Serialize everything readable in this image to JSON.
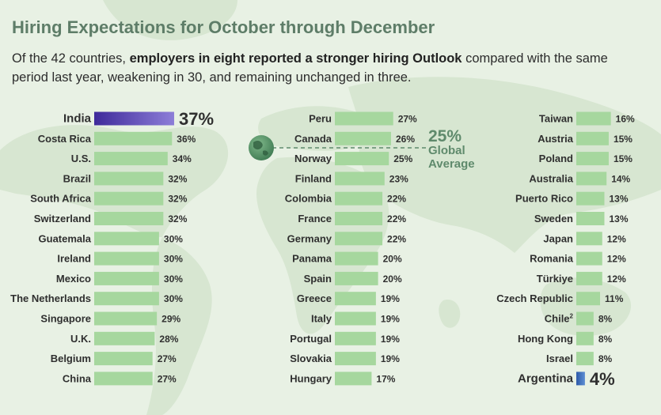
{
  "title": "Hiring Expectations for October through December",
  "subtitle": {
    "pre": "Of the 42 countries, ",
    "bold": "employers in eight reported a stronger hiring Outlook",
    "post": " compared with the same period last year, weakening in 30, and remaining unchanged in three."
  },
  "colors": {
    "bar": "#a6d79e",
    "highlight_top": "#5a46ad",
    "highlight_bottom": "#3d6bb0",
    "average": "#5f8a6c",
    "map": "#d7e6d1"
  },
  "icons": {
    "average_marker": "globe-icon"
  },
  "chart_data": {
    "type": "bar",
    "orientation": "horizontal",
    "unit": "%",
    "xlim": [
      0,
      40
    ],
    "title": "Hiring Expectations for October through December",
    "global_average": {
      "value": 25,
      "label": "25%",
      "text_line1": "Global",
      "text_line2": "Average"
    },
    "columns": [
      [
        {
          "country": "India",
          "value": 37,
          "label": "37%",
          "highlight": "top"
        },
        {
          "country": "Costa Rica",
          "value": 36,
          "label": "36%"
        },
        {
          "country": "U.S.",
          "value": 34,
          "label": "34%"
        },
        {
          "country": "Brazil",
          "value": 32,
          "label": "32%"
        },
        {
          "country": "South Africa",
          "value": 32,
          "label": "32%"
        },
        {
          "country": "Switzerland",
          "value": 32,
          "label": "32%"
        },
        {
          "country": "Guatemala",
          "value": 30,
          "label": "30%"
        },
        {
          "country": "Ireland",
          "value": 30,
          "label": "30%"
        },
        {
          "country": "Mexico",
          "value": 30,
          "label": "30%"
        },
        {
          "country": "The Netherlands",
          "value": 30,
          "label": "30%"
        },
        {
          "country": "Singapore",
          "value": 29,
          "label": "29%"
        },
        {
          "country": "U.K.",
          "value": 28,
          "label": "28%"
        },
        {
          "country": "Belgium",
          "value": 27,
          "label": "27%"
        },
        {
          "country": "China",
          "value": 27,
          "label": "27%"
        }
      ],
      [
        {
          "country": "Peru",
          "value": 27,
          "label": "27%"
        },
        {
          "country": "Canada",
          "value": 26,
          "label": "26%"
        },
        {
          "country": "Norway",
          "value": 25,
          "label": "25%"
        },
        {
          "country": "Finland",
          "value": 23,
          "label": "23%"
        },
        {
          "country": "Colombia",
          "value": 22,
          "label": "22%"
        },
        {
          "country": "France",
          "value": 22,
          "label": "22%"
        },
        {
          "country": "Germany",
          "value": 22,
          "label": "22%"
        },
        {
          "country": "Panama",
          "value": 20,
          "label": "20%"
        },
        {
          "country": "Spain",
          "value": 20,
          "label": "20%"
        },
        {
          "country": "Greece",
          "value": 19,
          "label": "19%"
        },
        {
          "country": "Italy",
          "value": 19,
          "label": "19%"
        },
        {
          "country": "Portugal",
          "value": 19,
          "label": "19%"
        },
        {
          "country": "Slovakia",
          "value": 19,
          "label": "19%"
        },
        {
          "country": "Hungary",
          "value": 17,
          "label": "17%"
        }
      ],
      [
        {
          "country": "Taiwan",
          "value": 16,
          "label": "16%"
        },
        {
          "country": "Austria",
          "value": 15,
          "label": "15%"
        },
        {
          "country": "Poland",
          "value": 15,
          "label": "15%"
        },
        {
          "country": "Australia",
          "value": 14,
          "label": "14%"
        },
        {
          "country": "Puerto Rico",
          "value": 13,
          "label": "13%"
        },
        {
          "country": "Sweden",
          "value": 13,
          "label": "13%"
        },
        {
          "country": "Japan",
          "value": 12,
          "label": "12%"
        },
        {
          "country": "Romania",
          "value": 12,
          "label": "12%"
        },
        {
          "country": "Türkiye",
          "value": 12,
          "label": "12%"
        },
        {
          "country": "Czech Republic",
          "value": 11,
          "label": "11%"
        },
        {
          "country": "Chile",
          "superscript": "2",
          "value": 8,
          "label": "8%"
        },
        {
          "country": "Hong Kong",
          "value": 8,
          "label": "8%"
        },
        {
          "country": "Israel",
          "value": 8,
          "label": "8%"
        },
        {
          "country": "Argentina",
          "value": 4,
          "label": "4%",
          "highlight": "bottom"
        }
      ]
    ]
  }
}
